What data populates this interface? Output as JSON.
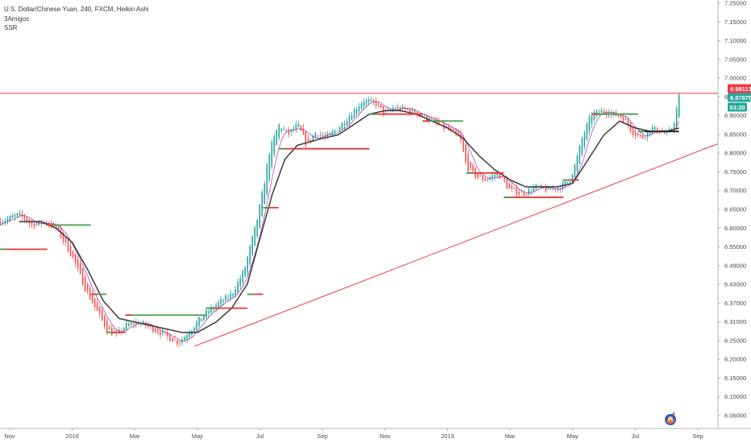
{
  "legend": {
    "title": "U.S. Dollar/Chinese Yuan, 240, FXCM, Heikin Ashi",
    "indicators": [
      "3Amigos",
      "SSR"
    ]
  },
  "price_tags": [
    {
      "label": "6.98113",
      "value": 6.98113,
      "color": "#f23645"
    },
    {
      "label": "6.97975",
      "value": 6.97975,
      "color": "#26a69a"
    },
    {
      "label": "53:20",
      "value": 6.94,
      "color": "#26a69a"
    }
  ],
  "badge": {
    "count": "4"
  },
  "colors": {
    "up": "#26a69a",
    "down": "#ef5350",
    "slow_ma": "#3a3a3a",
    "fast_ma": "#9c27b0",
    "resistance": "#f23645",
    "trendline": "#f23645",
    "level_red": "#e53935",
    "level_green": "#43a047",
    "level_dark": "#222222"
  },
  "chart_data": {
    "type": "line",
    "title": "U.S. Dollar/Chinese Yuan, 240, FXCM, Heikin Ashi",
    "xlabel": "",
    "ylabel": "",
    "ylim": [
      6.01,
      7.26
    ],
    "y_ticks": [
      "7.25000",
      "7.15000",
      "7.10000",
      "7.05000",
      "7.00000",
      "6.95000",
      "6.90000",
      "6.85000",
      "6.80000",
      "6.75000",
      "6.70000",
      "6.65000",
      "6.60000",
      "6.55000",
      "6.49000",
      "6.43000",
      "6.37000",
      "6.31000",
      "6.25000",
      "6.20000",
      "6.15000",
      "6.10000",
      "6.06000"
    ],
    "x_ticks": [
      {
        "label": "Nov",
        "t": 0
      },
      {
        "label": "2018",
        "t": 2
      },
      {
        "label": "Mar",
        "t": 4
      },
      {
        "label": "May",
        "t": 6
      },
      {
        "label": "Jul",
        "t": 8
      },
      {
        "label": "Sep",
        "t": 10
      },
      {
        "label": "Nov",
        "t": 12
      },
      {
        "label": "2019",
        "t": 14
      },
      {
        "label": "Mar",
        "t": 16
      },
      {
        "label": "May",
        "t": 18
      },
      {
        "label": "Jul",
        "t": 20
      },
      {
        "label": "Sep",
        "t": 22
      }
    ],
    "xlim": [
      -0.3,
      23.8
    ],
    "series": [
      {
        "role": "price",
        "x": [
          -0.3,
          0.3,
          0.7,
          1.1,
          1.5,
          2.0,
          2.4,
          2.8,
          3.1,
          3.4,
          3.7,
          4.1,
          4.6,
          5.0,
          5.4,
          5.8,
          6.2,
          6.6,
          7.1,
          7.5,
          7.9,
          8.1,
          8.3,
          8.6,
          8.9,
          9.2,
          9.5,
          9.8,
          10.1,
          10.5,
          10.9,
          11.3,
          11.7,
          12.0,
          12.3,
          12.8,
          13.3,
          13.7,
          14.1,
          14.4,
          14.6,
          14.9,
          15.2,
          15.6,
          16.0,
          16.4,
          16.8,
          17.2,
          17.6,
          17.9,
          18.1,
          18.3,
          18.6,
          19.0,
          19.3,
          19.6,
          19.9,
          20.2,
          20.5,
          20.8,
          21.0,
          21.2,
          21.4
        ],
        "values": [
          6.62,
          6.64,
          6.61,
          6.62,
          6.6,
          6.52,
          6.43,
          6.36,
          6.31,
          6.29,
          6.32,
          6.33,
          6.31,
          6.29,
          6.27,
          6.31,
          6.35,
          6.38,
          6.41,
          6.48,
          6.62,
          6.71,
          6.82,
          6.9,
          6.87,
          6.9,
          6.84,
          6.88,
          6.86,
          6.89,
          6.93,
          6.97,
          6.96,
          6.93,
          6.95,
          6.94,
          6.92,
          6.9,
          6.88,
          6.86,
          6.78,
          6.75,
          6.74,
          6.76,
          6.71,
          6.7,
          6.72,
          6.71,
          6.72,
          6.74,
          6.79,
          6.86,
          6.93,
          6.94,
          6.93,
          6.92,
          6.88,
          6.86,
          6.89,
          6.88,
          6.87,
          6.89,
          6.98
        ]
      },
      {
        "role": "slow-ma",
        "x": [
          0.3,
          1.0,
          1.5,
          2.0,
          2.5,
          3.0,
          3.5,
          4.0,
          4.5,
          5.0,
          5.5,
          6.0,
          6.6,
          7.1,
          7.6,
          8.0,
          8.4,
          8.8,
          9.2,
          9.6,
          10.0,
          10.5,
          11.0,
          11.5,
          12.0,
          12.5,
          13.0,
          13.5,
          14.0,
          14.5,
          15.0,
          15.5,
          16.0,
          16.5,
          17.0,
          17.5,
          18.0,
          18.5,
          19.0,
          19.5,
          20.0,
          20.5,
          21.0,
          21.4
        ],
        "values": [
          6.62,
          6.62,
          6.6,
          6.56,
          6.48,
          6.39,
          6.34,
          6.33,
          6.32,
          6.31,
          6.3,
          6.3,
          6.33,
          6.37,
          6.44,
          6.57,
          6.7,
          6.8,
          6.84,
          6.85,
          6.86,
          6.87,
          6.9,
          6.93,
          6.94,
          6.94,
          6.93,
          6.91,
          6.89,
          6.86,
          6.81,
          6.77,
          6.74,
          6.72,
          6.72,
          6.72,
          6.73,
          6.8,
          6.87,
          6.91,
          6.89,
          6.88,
          6.88,
          6.89
        ]
      }
    ],
    "levels": [
      {
        "x": [
          -0.3,
          1.2
        ],
        "value": 6.54,
        "color": "red"
      },
      {
        "x": [
          1.2,
          2.6
        ],
        "value": 6.61,
        "color": "green"
      },
      {
        "x": [
          2.6,
          3.1
        ],
        "value": 6.41,
        "color": "green"
      },
      {
        "x": [
          3.1,
          3.7
        ],
        "value": 6.3,
        "color": "red"
      },
      {
        "x": [
          3.7,
          6.3
        ],
        "value": 6.35,
        "color": "green"
      },
      {
        "x": [
          6.3,
          7.6
        ],
        "value": 6.37,
        "color": "red"
      },
      {
        "x": [
          7.6,
          8.1
        ],
        "value": 6.41,
        "color": "red"
      },
      {
        "x": [
          8.1,
          8.6
        ],
        "value": 6.66,
        "color": "red"
      },
      {
        "x": [
          8.6,
          11.5
        ],
        "value": 6.83,
        "color": "red"
      },
      {
        "x": [
          11.5,
          13.2
        ],
        "value": 6.93,
        "color": "red"
      },
      {
        "x": [
          13.2,
          14.5
        ],
        "value": 6.91,
        "color": "green"
      },
      {
        "x": [
          14.6,
          15.8
        ],
        "value": 6.76,
        "color": "red"
      },
      {
        "x": [
          15.8,
          17.7
        ],
        "value": 6.69,
        "color": "red"
      },
      {
        "x": [
          17.7,
          18.2
        ],
        "value": 6.74,
        "color": "red"
      },
      {
        "x": [
          18.6,
          20.1
        ],
        "value": 6.93,
        "color": "green"
      },
      {
        "x": [
          20.1,
          21.4
        ],
        "value": 6.88,
        "color": "dark"
      }
    ],
    "resistance": 6.99,
    "trendline": {
      "x": [
        5.9,
        22.8
      ],
      "values": [
        6.26,
        6.85
      ]
    }
  }
}
